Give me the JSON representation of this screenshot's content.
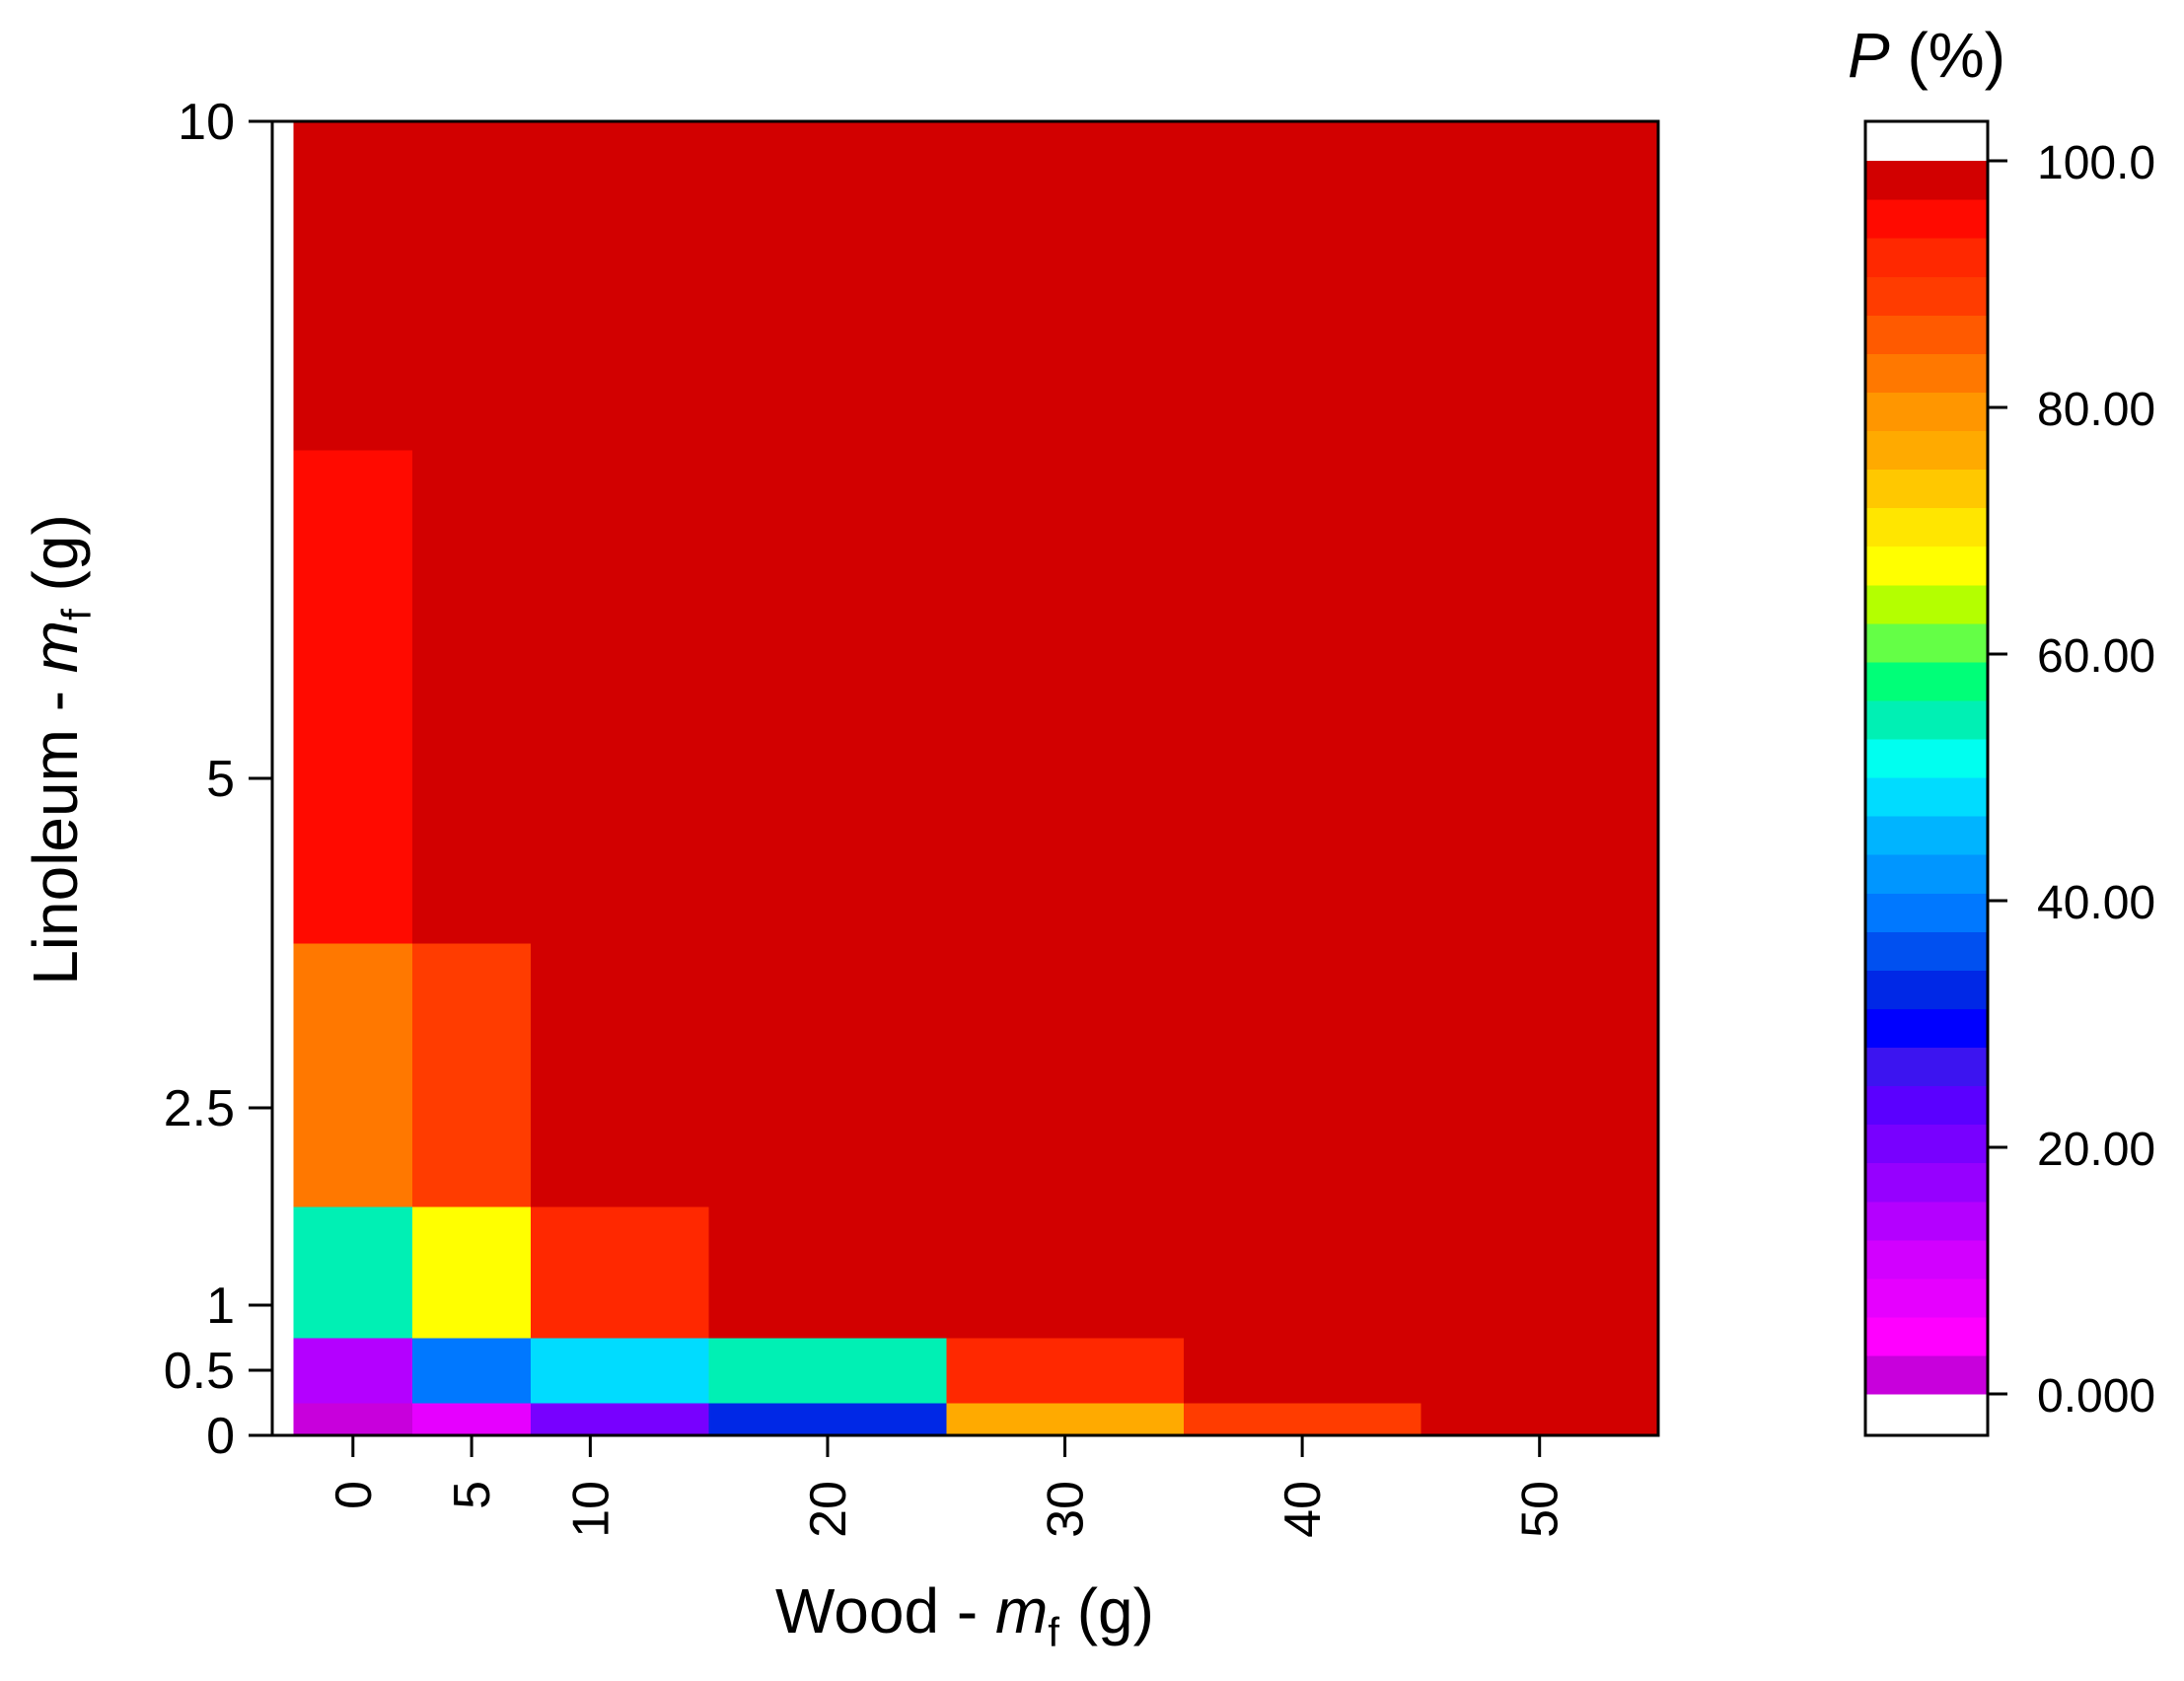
{
  "chart_data": {
    "type": "heatmap",
    "title": "",
    "xlabel": {
      "prefix": "Wood - ",
      "var": "m",
      "sub": "f",
      "suffix": " (g)"
    },
    "ylabel": {
      "prefix": "Linoleum - ",
      "var": "m",
      "sub": "f",
      "suffix": " (g)"
    },
    "x_categories": [
      "0",
      "5",
      "10",
      "20",
      "30",
      "40",
      "50"
    ],
    "x_values": [
      0,
      5,
      10,
      20,
      30,
      40,
      50
    ],
    "x_cell_edges": [
      -2.5,
      2.5,
      7.5,
      15,
      25,
      35,
      45,
      55
    ],
    "xlim": [
      -3.4,
      55
    ],
    "y_ticks": [
      "0",
      "0.5",
      "1",
      "2.5",
      "5",
      "10"
    ],
    "y_tick_values": [
      0,
      0.5,
      1,
      2.5,
      5,
      10
    ],
    "y_cell_edges": [
      0,
      0.25,
      0.75,
      1.75,
      3.75,
      7.5,
      10
    ],
    "ylim": [
      0,
      10
    ],
    "z_grid_rows_bottom_to_top": [
      [
        2,
        7,
        19,
        33,
        77,
        90,
        100
      ],
      [
        15,
        40,
        47,
        55,
        93,
        100,
        100
      ],
      [
        55,
        67,
        93,
        100,
        100,
        100,
        100
      ],
      [
        82,
        90,
        100,
        100,
        100,
        100,
        100
      ],
      [
        96,
        100,
        100,
        100,
        100,
        100,
        100
      ],
      [
        100,
        100,
        100,
        100,
        100,
        100,
        100
      ]
    ],
    "colorbar": {
      "title": {
        "var": "P",
        "suffix": " (%)"
      },
      "ticks": [
        "0.000",
        "20.00",
        "40.00",
        "60.00",
        "80.00",
        "100.0"
      ],
      "tick_values": [
        0,
        20,
        40,
        60,
        80,
        100
      ],
      "range": [
        0,
        100
      ],
      "colors_low_to_high": [
        "#C800DC",
        "#FF00FF",
        "#E600FF",
        "#D200FF",
        "#B400FF",
        "#9600FF",
        "#7800FF",
        "#5A00FF",
        "#3C14F0",
        "#0000FF",
        "#0028E6",
        "#0050F0",
        "#0078FF",
        "#0096FF",
        "#00B4FF",
        "#00DCFF",
        "#00FFF0",
        "#00F0B4",
        "#00FF78",
        "#64FF46",
        "#B4FF00",
        "#FFFF00",
        "#FFE600",
        "#FFC800",
        "#FFAA00",
        "#FF9600",
        "#FF7800",
        "#FF5A00",
        "#FF3C00",
        "#FF2800",
        "#FF0A00",
        "#D20000"
      ]
    }
  }
}
